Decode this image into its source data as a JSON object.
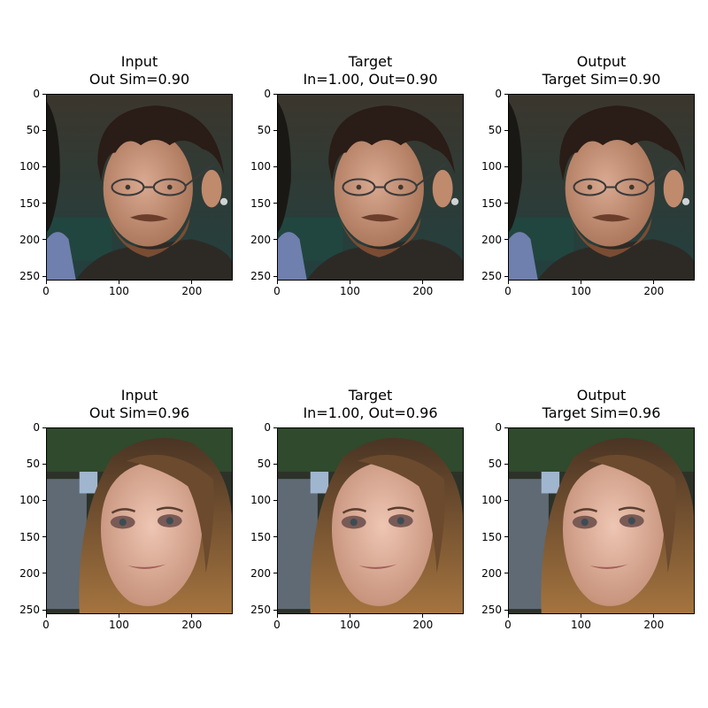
{
  "figure": {
    "panels": [
      {
        "title_line1": "Input",
        "title_line2": "Out Sim=0.90",
        "face": "man"
      },
      {
        "title_line1": "Target",
        "title_line2": "In=1.00, Out=0.90",
        "face": "man"
      },
      {
        "title_line1": "Output",
        "title_line2": "Target Sim=0.90",
        "face": "man"
      },
      {
        "title_line1": "Input",
        "title_line2": "Out Sim=0.96",
        "face": "woman"
      },
      {
        "title_line1": "Target",
        "title_line2": "In=1.00, Out=0.96",
        "face": "woman"
      },
      {
        "title_line1": "Output",
        "title_line2": "Target Sim=0.96",
        "face": "woman"
      }
    ],
    "x_ticks": [
      "0",
      "100",
      "200"
    ],
    "y_ticks": [
      "0",
      "50",
      "100",
      "150",
      "200",
      "250"
    ]
  }
}
